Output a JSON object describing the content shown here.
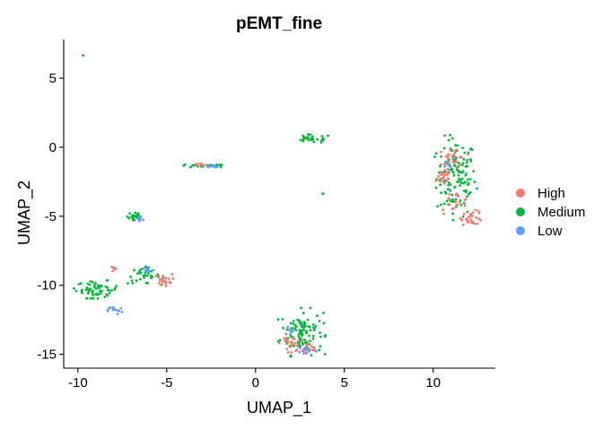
{
  "chart_data": {
    "type": "scatter",
    "title": "pEMT_fine",
    "xlabel": "UMAP_1",
    "ylabel": "UMAP_2",
    "xlim": [
      -10.8,
      13.5
    ],
    "ylim": [
      -16,
      7.8
    ],
    "xticks": [
      -10,
      -5,
      0,
      5,
      10
    ],
    "yticks": [
      5,
      0,
      -5,
      -10,
      -15
    ],
    "xtick_labels": [
      "-10",
      "-5",
      "0",
      "5",
      "10"
    ],
    "ytick_labels": [
      "5",
      "0",
      "-5",
      "-10",
      "-15"
    ],
    "grid": false,
    "legend_position": "right",
    "series": [
      {
        "name": "High",
        "color": "#F8766D",
        "clusters": [
          {
            "cx": 10.6,
            "cy": -2.2,
            "rx": 0.4,
            "ry": 0.5,
            "n": 20
          },
          {
            "cx": 11.2,
            "cy": -0.8,
            "rx": 0.7,
            "ry": 0.9,
            "n": 30
          },
          {
            "cx": 12.2,
            "cy": -5.1,
            "rx": 0.6,
            "ry": 0.5,
            "n": 30
          },
          {
            "cx": 11.2,
            "cy": -4.0,
            "rx": 0.9,
            "ry": 0.8,
            "n": 20
          },
          {
            "cx": 2.0,
            "cy": -14.2,
            "rx": 0.6,
            "ry": 0.6,
            "n": 25
          },
          {
            "cx": 3.0,
            "cy": -14.6,
            "rx": 0.5,
            "ry": 0.4,
            "n": 12
          },
          {
            "cx": -5.2,
            "cy": -9.6,
            "rx": 0.5,
            "ry": 0.4,
            "n": 22
          },
          {
            "cx": -8.0,
            "cy": -8.8,
            "rx": 0.2,
            "ry": 0.3,
            "n": 6
          },
          {
            "cx": -3.2,
            "cy": -1.3,
            "rx": 0.6,
            "ry": 0.12,
            "n": 8
          }
        ]
      },
      {
        "name": "Medium",
        "color": "#00BA38",
        "clusters": [
          {
            "cx": 11.3,
            "cy": -2.2,
            "rx": 1.1,
            "ry": 2.8,
            "n": 130
          },
          {
            "cx": 2.6,
            "cy": -13.4,
            "rx": 1.2,
            "ry": 1.6,
            "n": 110
          },
          {
            "cx": -8.9,
            "cy": -10.3,
            "rx": 1.2,
            "ry": 0.6,
            "n": 60
          },
          {
            "cx": -6.3,
            "cy": -9.3,
            "rx": 0.9,
            "ry": 0.6,
            "n": 35
          },
          {
            "cx": -6.8,
            "cy": -5.0,
            "rx": 0.4,
            "ry": 0.5,
            "n": 25
          },
          {
            "cx": 3.2,
            "cy": 0.6,
            "rx": 1.1,
            "ry": 0.3,
            "n": 30
          },
          {
            "cx": -3.0,
            "cy": -1.35,
            "rx": 1.4,
            "ry": 0.12,
            "n": 25
          },
          {
            "cx": -9.7,
            "cy": 6.6,
            "rx": 0.05,
            "ry": 0.05,
            "n": 1
          },
          {
            "cx": 3.8,
            "cy": -3.4,
            "rx": 0.05,
            "ry": 0.05,
            "n": 2
          }
        ]
      },
      {
        "name": "Low",
        "color": "#619CFF",
        "clusters": [
          {
            "cx": -7.9,
            "cy": -11.8,
            "rx": 0.4,
            "ry": 0.3,
            "n": 14
          },
          {
            "cx": -6.5,
            "cy": -5.2,
            "rx": 0.2,
            "ry": 0.3,
            "n": 10
          },
          {
            "cx": -6.1,
            "cy": -8.9,
            "rx": 0.4,
            "ry": 0.3,
            "n": 10
          },
          {
            "cx": -2.4,
            "cy": -1.4,
            "rx": 0.6,
            "ry": 0.1,
            "n": 10
          },
          {
            "cx": 2.9,
            "cy": -14.7,
            "rx": 0.5,
            "ry": 0.3,
            "n": 12
          },
          {
            "cx": 2.0,
            "cy": -13.2,
            "rx": 0.4,
            "ry": 0.4,
            "n": 8
          },
          {
            "cx": 10.9,
            "cy": -1.0,
            "rx": 0.4,
            "ry": 0.6,
            "n": 6
          }
        ]
      }
    ]
  }
}
